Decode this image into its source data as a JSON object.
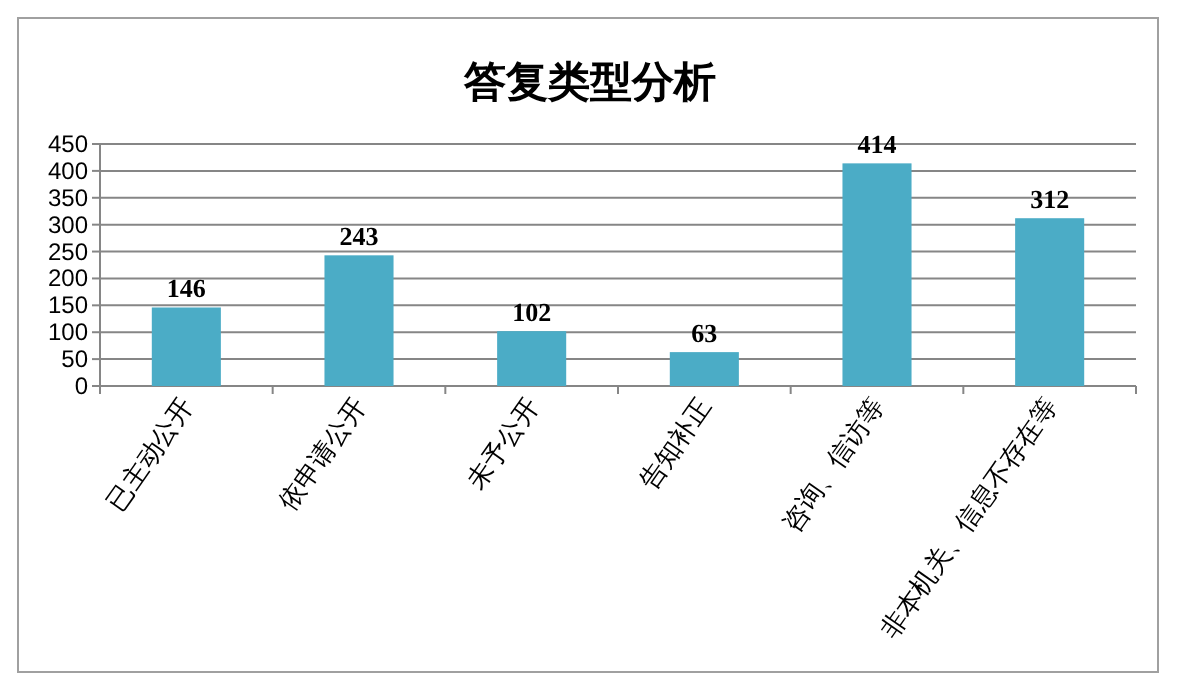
{
  "chart_data": {
    "type": "bar",
    "title": "答复类型分析",
    "categories": [
      "已主动公开",
      "依申请公开",
      "未予公开",
      "告知补正",
      "咨询、信访等",
      "非本机关、信息不存在等"
    ],
    "values": [
      146,
      243,
      102,
      63,
      414,
      312
    ],
    "color": "#4bacc6",
    "ylim": [
      0,
      450
    ],
    "yticks": [
      0,
      50,
      100,
      150,
      200,
      250,
      300,
      350,
      400,
      450
    ],
    "grid": "y",
    "data_labels": true
  }
}
